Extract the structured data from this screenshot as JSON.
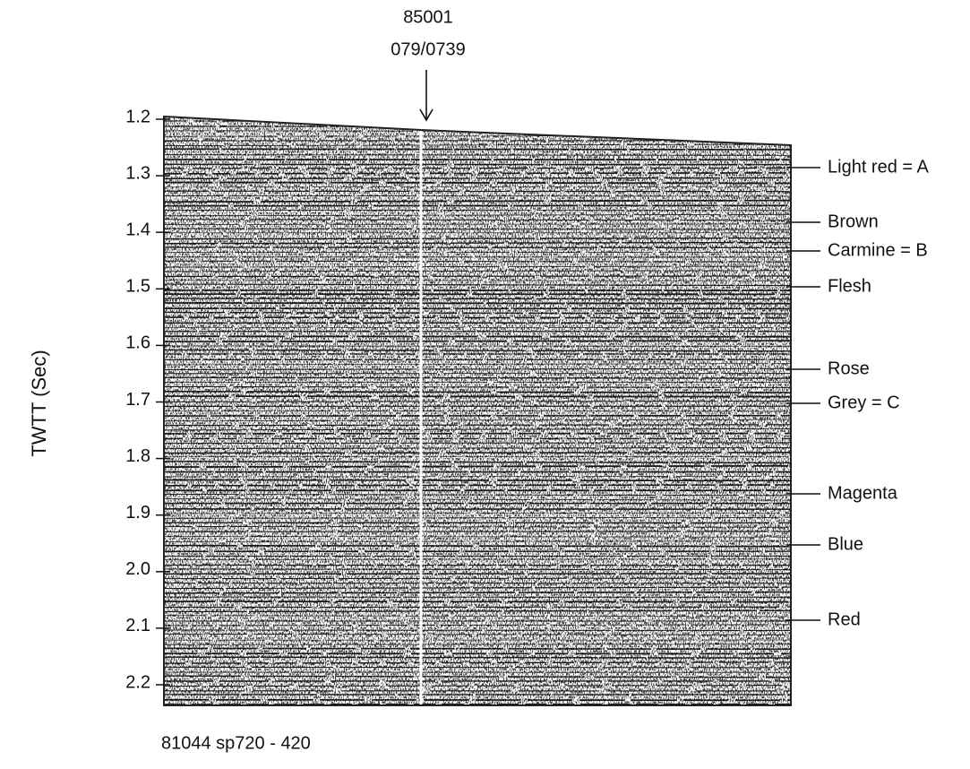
{
  "figure": {
    "well": {
      "name": "85001",
      "id": "079/0739"
    },
    "axis": {
      "label": "TWTT (Sec)",
      "ticks": [
        "1.2",
        "1.3",
        "1.4",
        "1.5",
        "1.6",
        "1.7",
        "1.8",
        "1.9",
        "2.0",
        "2.1",
        "2.2"
      ]
    },
    "horizons": [
      "Light red = A",
      "Brown",
      "Carmine = B",
      "Flesh",
      "Rose",
      "Grey = C",
      "Magenta",
      "Blue",
      "Red"
    ],
    "line_label": "81044 sp720 - 420"
  }
}
